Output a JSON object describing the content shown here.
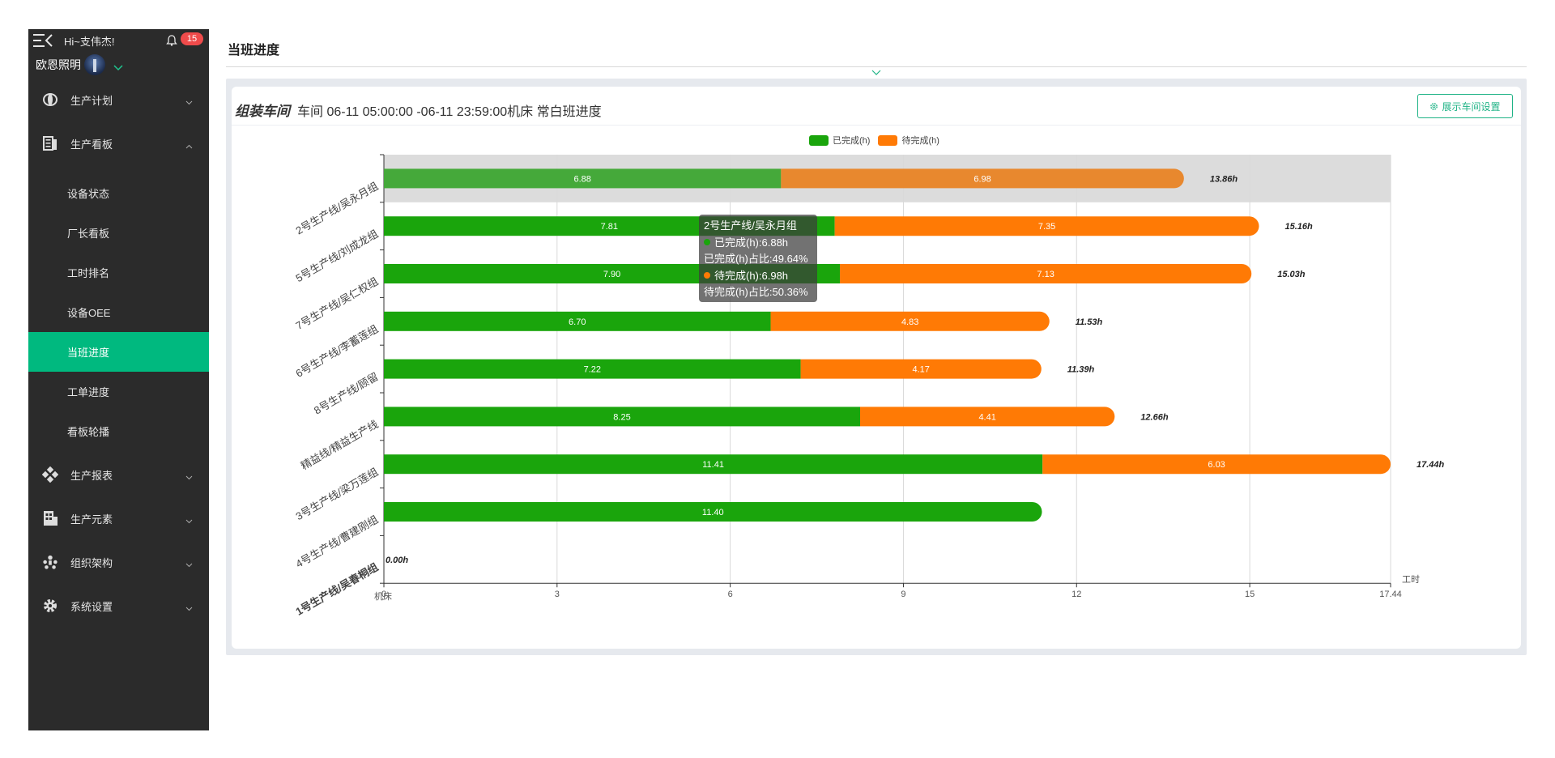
{
  "header": {
    "greeting": "Hi~支伟杰!",
    "notification_count": "15",
    "company": "欧恩照明"
  },
  "sidebar": {
    "menus": [
      {
        "label": "生产计划",
        "icon": "plan-icon"
      },
      {
        "label": "生产看板",
        "icon": "board-icon",
        "expanded": true,
        "children": [
          {
            "label": "设备状态"
          },
          {
            "label": "厂长看板"
          },
          {
            "label": "工时排名"
          },
          {
            "label": "设备OEE"
          },
          {
            "label": "当班进度",
            "active": true
          },
          {
            "label": "工单进度"
          },
          {
            "label": "看板轮播"
          }
        ]
      },
      {
        "label": "生产报表",
        "icon": "report-icon"
      },
      {
        "label": "生产元素",
        "icon": "element-icon"
      },
      {
        "label": "组织架构",
        "icon": "org-icon"
      },
      {
        "label": "系统设置",
        "icon": "settings-icon"
      }
    ]
  },
  "page": {
    "title": "当班进度",
    "workshop_name": "组装车间",
    "workshop_info": "车间 06-11 05:00:00 -06-11 23:59:00机床 常白班进度",
    "setting_button": "展示车间设置"
  },
  "colors": {
    "done": "#1aa50c",
    "pending": "#ff7a05",
    "accent": "#00b97f"
  },
  "tooltip": {
    "title": "2号生产线/吴永月组",
    "done_line": "已完成(h):6.88h",
    "done_pct": "已完成(h)占比:49.64%",
    "pending_line": "待完成(h):6.98h",
    "pending_pct": "待完成(h)占比:50.36%"
  },
  "chart_data": {
    "type": "bar",
    "orientation": "horizontal",
    "stacked": true,
    "categories": [
      "2号生产线/吴永月组",
      "5号生产线/刘成龙组",
      "7号生产线/吴仁权组",
      "6号生产线/李蓄莲组",
      "8号生产线/顾留",
      "精益线/精益生产线",
      "3号生产线/梁万莲组",
      "4号生产线/曹建刚组",
      "1号生产线/吴春桐组"
    ],
    "series": [
      {
        "name": "已完成(h)",
        "color": "#1aa50c",
        "values": [
          6.88,
          7.81,
          7.9,
          6.7,
          7.22,
          8.25,
          11.41,
          11.4,
          0
        ]
      },
      {
        "name": "待完成(h)",
        "color": "#ff7a05",
        "values": [
          6.98,
          7.35,
          7.13,
          4.83,
          4.17,
          4.41,
          6.03,
          0,
          0
        ]
      }
    ],
    "totals": [
      "13.86h",
      "15.16h",
      "15.03h",
      "11.53h",
      "11.39h",
      "12.66h",
      "17.44h",
      "",
      "0.00h"
    ],
    "xlim": [
      0,
      17.44
    ],
    "x_ticks": [
      "0",
      "3",
      "6",
      "9",
      "12",
      "15",
      "17.44"
    ],
    "x_tick_values": [
      0,
      3,
      6,
      9,
      12,
      15,
      17.44
    ],
    "xlabel": "工时",
    "ylabel": "机床",
    "highlighted_category": 0,
    "legend_position": "top-center",
    "grid": true
  }
}
